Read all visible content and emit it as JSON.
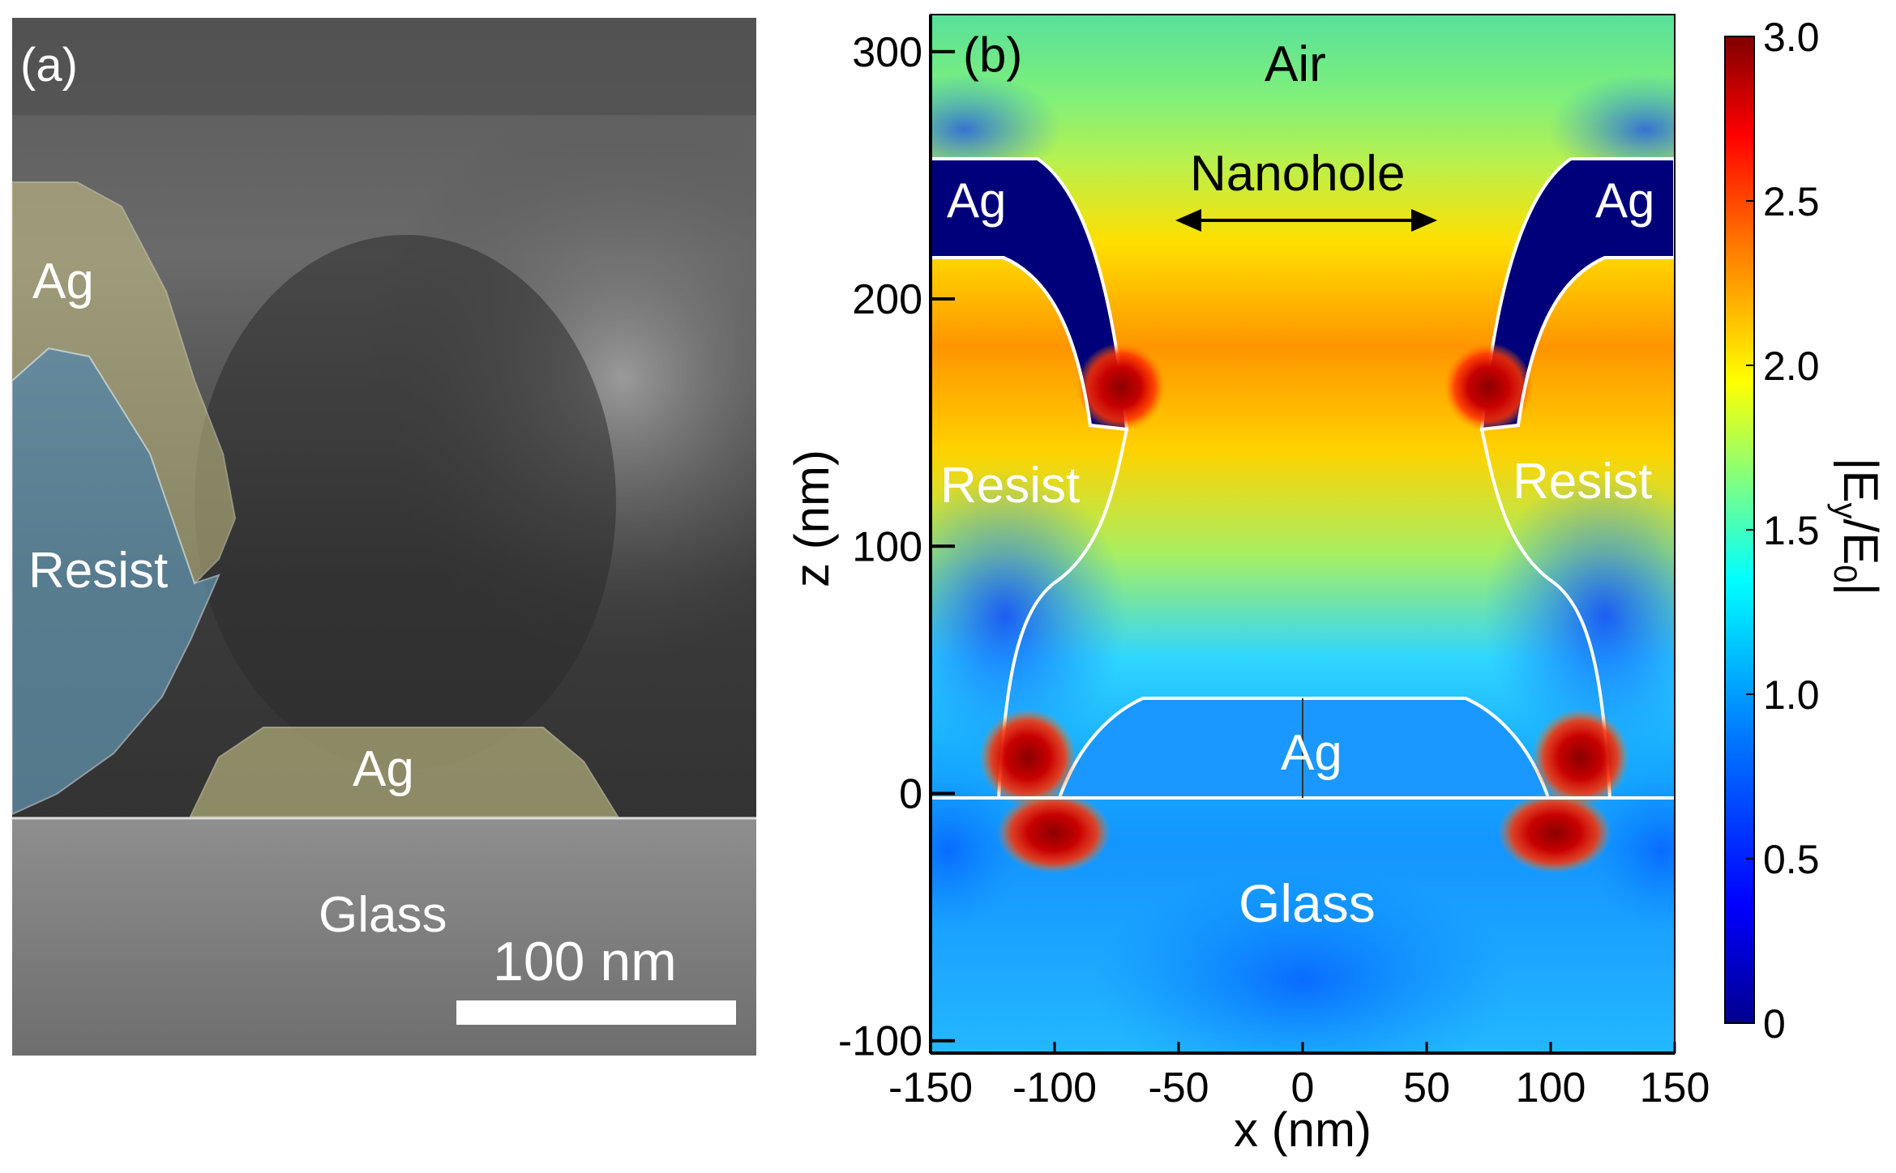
{
  "panel_a": {
    "tag": "(a)",
    "labels": {
      "ag_top": "Ag",
      "resist": "Resist",
      "ag_bottom": "Ag",
      "glass": "Glass"
    },
    "scalebar": "100 nm",
    "colors": {
      "ag": "#c9c489",
      "resist": "#6aa8c7",
      "sem_dark": "#3a3a3a"
    }
  },
  "panel_b": {
    "tag": "(b)",
    "labels": {
      "air": "Air",
      "nanohole": "Nanohole",
      "ag_left": "Ag",
      "ag_right": "Ag",
      "resist_left": "Resist",
      "resist_right": "Resist",
      "ag_bottom": "Ag",
      "glass": "Glass"
    },
    "xlabel": "x (nm)",
    "ylabel": "z (nm)",
    "x_ticks": [
      "-150",
      "-100",
      "-50",
      "0",
      "50",
      "100",
      "150"
    ],
    "y_ticks": [
      "300",
      "200",
      "100",
      "0",
      "-100"
    ],
    "colorbar": {
      "label_main": "|E",
      "label_sub1": "y",
      "label_mid": "/E",
      "label_sub2": "0",
      "label_end": "|",
      "ticks": [
        "3.0",
        "2.5",
        "2.0",
        "1.5",
        "1.0",
        "0.5",
        "0"
      ],
      "colormap": [
        "#00008f",
        "#0000ff",
        "#0080ff",
        "#00ffff",
        "#80ff80",
        "#ffff00",
        "#ff8000",
        "#ff0000",
        "#800000"
      ]
    }
  },
  "chart_data": {
    "type": "heatmap",
    "xlabel": "x (nm)",
    "ylabel": "z (nm)",
    "xlim": [
      -150,
      150
    ],
    "ylim": [
      -105,
      315
    ],
    "colorbar_label": "|Ey/E0|",
    "clim": [
      0,
      3.0
    ],
    "x_ticks": [
      -150,
      -100,
      -50,
      0,
      50,
      100,
      150
    ],
    "y_ticks": [
      -100,
      0,
      100,
      200,
      300
    ],
    "colorbar_ticks": [
      0,
      0.5,
      1.0,
      1.5,
      2.0,
      2.5,
      3.0
    ]
  }
}
